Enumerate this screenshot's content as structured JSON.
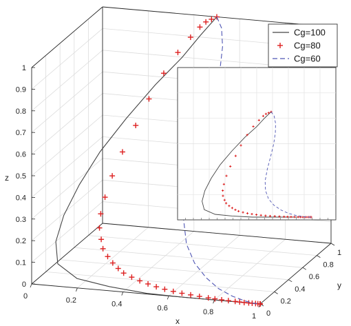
{
  "chart_data": {
    "type": "line",
    "projection": "3d",
    "xlabel": "x",
    "ylabel": "y",
    "zlabel": "z",
    "xlim": [
      0,
      1
    ],
    "ylim": [
      0,
      1
    ],
    "zlim": [
      0,
      1
    ],
    "x_ticks": [
      "0",
      "0.2",
      "0.4",
      "0.6",
      "0.8",
      "1"
    ],
    "y_ticks": [
      "0",
      "0.2",
      "0.4",
      "0.6",
      "0.8",
      "1"
    ],
    "z_ticks": [
      "0",
      "0.1",
      "0.2",
      "0.3",
      "0.4",
      "0.5",
      "0.6",
      "0.7",
      "0.8",
      "0.9",
      "1"
    ],
    "grid": true,
    "legend_position": "top-right",
    "colors": {
      "Cg=100": "#444444",
      "Cg=80": "#dd1f1f",
      "Cg=60": "#4f56b4"
    },
    "series": [
      {
        "name": "Cg=100",
        "style": "solid",
        "x": [
          0.5,
          0.46,
          0.41,
          0.33,
          0.24,
          0.16,
          0.1,
          0.06,
          0.05,
          0.08,
          0.18,
          0.33,
          0.5,
          0.67,
          0.83,
          0.95,
          1.0
        ],
        "y": [
          1.0,
          0.9,
          0.8,
          0.68,
          0.56,
          0.45,
          0.35,
          0.26,
          0.18,
          0.11,
          0.06,
          0.03,
          0.01,
          0.0,
          0.0,
          0.0,
          0.0
        ],
        "z": [
          1.0,
          0.94,
          0.86,
          0.76,
          0.63,
          0.5,
          0.37,
          0.25,
          0.15,
          0.07,
          0.025,
          0.01,
          0.0,
          0.0,
          0.0,
          0.0,
          0.0
        ]
      },
      {
        "name": "Cg=80",
        "style": "plus",
        "x": [
          0.5,
          0.48,
          0.46,
          0.44,
          0.41,
          0.37,
          0.33,
          0.29,
          0.26,
          0.23,
          0.21,
          0.2,
          0.2,
          0.21,
          0.23,
          0.25,
          0.28,
          0.31,
          0.34,
          0.37,
          0.41,
          0.45,
          0.49,
          0.53,
          0.57,
          0.61,
          0.65,
          0.69,
          0.73,
          0.77,
          0.8,
          0.83,
          0.86,
          0.89,
          0.91,
          0.93,
          0.95,
          0.965,
          0.98,
          0.99,
          1.0,
          1.0,
          1.0,
          1.0
        ],
        "y": [
          1.0,
          0.99,
          0.975,
          0.955,
          0.92,
          0.87,
          0.8,
          0.72,
          0.63,
          0.54,
          0.46,
          0.39,
          0.33,
          0.28,
          0.24,
          0.2,
          0.17,
          0.145,
          0.125,
          0.105,
          0.09,
          0.075,
          0.062,
          0.05,
          0.04,
          0.032,
          0.025,
          0.019,
          0.014,
          0.01,
          0.007,
          0.005,
          0.003,
          0.002,
          0.001,
          0.0,
          0.0,
          0.0,
          0.0,
          0.0,
          0.0,
          0.0,
          0.0,
          0.0
        ],
        "z": [
          1.0,
          0.99,
          0.98,
          0.96,
          0.92,
          0.86,
          0.78,
          0.68,
          0.58,
          0.48,
          0.39,
          0.31,
          0.25,
          0.2,
          0.16,
          0.13,
          0.105,
          0.085,
          0.068,
          0.055,
          0.044,
          0.035,
          0.028,
          0.022,
          0.017,
          0.013,
          0.01,
          0.008,
          0.006,
          0.004,
          0.003,
          0.002,
          0.0015,
          0.001,
          0.0005,
          0.0,
          0.0,
          0.0,
          0.0,
          0.0,
          0.0,
          0.0,
          0.0,
          0.0
        ]
      },
      {
        "name": "Cg=60",
        "style": "dashed",
        "x": [
          0.5,
          0.53,
          0.55,
          0.56,
          0.56,
          0.55,
          0.54,
          0.54,
          0.56,
          0.6,
          0.66,
          0.73,
          0.8,
          0.87,
          0.93,
          0.97,
          1.0
        ],
        "y": [
          1.0,
          0.97,
          0.92,
          0.85,
          0.76,
          0.66,
          0.55,
          0.44,
          0.34,
          0.25,
          0.17,
          0.11,
          0.06,
          0.03,
          0.01,
          0.0,
          0.0
        ],
        "z": [
          1.0,
          0.96,
          0.89,
          0.8,
          0.69,
          0.57,
          0.45,
          0.34,
          0.25,
          0.17,
          0.11,
          0.065,
          0.035,
          0.015,
          0.005,
          0.0,
          0.0
        ]
      }
    ]
  }
}
